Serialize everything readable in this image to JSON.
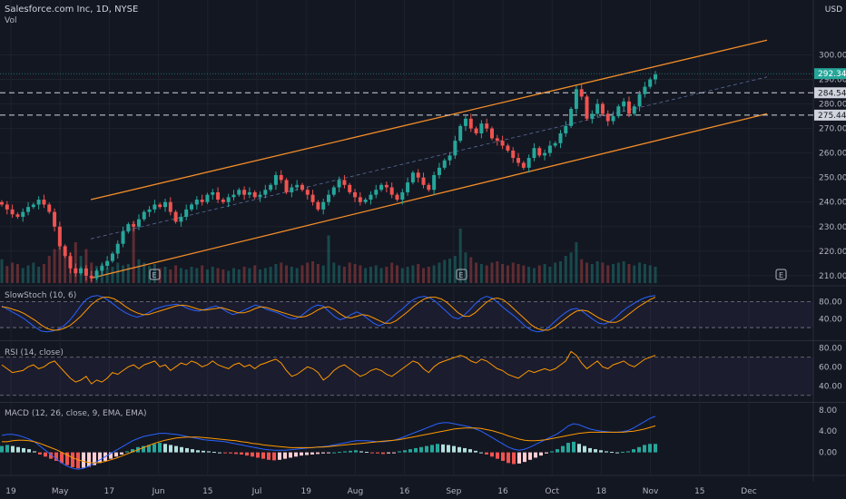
{
  "header": {
    "title": "Salesforce.com Inc, 1D, NYSE",
    "volume_label": "Vol",
    "currency": "USD",
    "earnings_marker": "E"
  },
  "price_labels": {
    "last": "292.34",
    "level_upper": "284.54",
    "level_lower": "275.44"
  },
  "panes": {
    "stoch": "SlowStoch (10, 6)",
    "rsi": "RSI (14, close)",
    "macd": "MACD (12, 26, close, 9, EMA, EMA)"
  },
  "colors": {
    "background": "#131722",
    "up": "#26a69a",
    "down": "#ef5350",
    "channel": "#f28c28",
    "blue_line": "#2962ff",
    "orange_line": "#ff9800",
    "grid": "#1e222d",
    "axis_text": "#b2b5be"
  },
  "chart_data": [
    {
      "type": "candlestick",
      "title": "Salesforce.com Inc, 1D, NYSE",
      "x_tick_labels": [
        "19",
        "May",
        "17",
        "Jun",
        "15",
        "Jul",
        "19",
        "Aug",
        "16",
        "Sep",
        "16",
        "Oct",
        "18",
        "Nov",
        "15",
        "Dec"
      ],
      "y_ticks": [
        210,
        220,
        230,
        240,
        250,
        260,
        270,
        280,
        290,
        300
      ],
      "ylim": [
        207,
        312
      ],
      "channel_upper": {
        "start": 241,
        "end": 306
      },
      "channel_lower": {
        "start": 209,
        "end": 276
      },
      "channel_mid": {
        "start": 225,
        "end": 291
      },
      "horizontal_levels": [
        284.54,
        275.44
      ],
      "last_price": 292.34,
      "earnings_markers": 2,
      "close": [
        239,
        237,
        235,
        234,
        236,
        238,
        239,
        241,
        239,
        236,
        230,
        222,
        218,
        213,
        211,
        213,
        210,
        209,
        212,
        214,
        216,
        219,
        223,
        228,
        231,
        230,
        233,
        236,
        237,
        239,
        238,
        240,
        236,
        232,
        234,
        237,
        239,
        241,
        240,
        243,
        244,
        241,
        240,
        242,
        243,
        245,
        243,
        244,
        242,
        243,
        245,
        247,
        251,
        249,
        244,
        246,
        247,
        245,
        243,
        240,
        237,
        240,
        243,
        246,
        249,
        247,
        244,
        242,
        240,
        241,
        243,
        245,
        247,
        246,
        243,
        241,
        244,
        248,
        252,
        250,
        247,
        245,
        251,
        254,
        257,
        259,
        265,
        271,
        274,
        270,
        268,
        272,
        270,
        266,
        265,
        263,
        261,
        258,
        256,
        254,
        258,
        262,
        259,
        260,
        263,
        264,
        268,
        271,
        278,
        286,
        283,
        274,
        276,
        280,
        276,
        273,
        275,
        279,
        281,
        276,
        279,
        284,
        287,
        290,
        292
      ],
      "volume": [
        0.35,
        0.25,
        0.3,
        0.28,
        0.22,
        0.26,
        0.3,
        0.24,
        0.28,
        0.4,
        0.5,
        0.65,
        0.55,
        0.45,
        0.6,
        0.4,
        0.5,
        0.3,
        0.25,
        0.28,
        0.22,
        0.24,
        0.3,
        0.26,
        0.28,
        0.9,
        0.35,
        0.3,
        0.25,
        0.28,
        0.22,
        0.24,
        0.2,
        0.26,
        0.22,
        0.2,
        0.24,
        0.22,
        0.26,
        0.2,
        0.24,
        0.22,
        0.2,
        0.18,
        0.22,
        0.2,
        0.24,
        0.22,
        0.26,
        0.2,
        0.22,
        0.24,
        0.28,
        0.3,
        0.26,
        0.24,
        0.22,
        0.26,
        0.3,
        0.32,
        0.28,
        0.26,
        0.7,
        0.3,
        0.26,
        0.24,
        0.3,
        0.28,
        0.26,
        0.22,
        0.24,
        0.26,
        0.22,
        0.24,
        0.3,
        0.26,
        0.22,
        0.24,
        0.26,
        0.28,
        0.22,
        0.24,
        0.26,
        0.3,
        0.34,
        0.36,
        0.4,
        0.8,
        0.45,
        0.38,
        0.3,
        0.28,
        0.26,
        0.3,
        0.32,
        0.28,
        0.26,
        0.3,
        0.28,
        0.26,
        0.24,
        0.22,
        0.26,
        0.28,
        0.24,
        0.3,
        0.32,
        0.4,
        0.45,
        0.6,
        0.35,
        0.3,
        0.28,
        0.32,
        0.3,
        0.26,
        0.28,
        0.3,
        0.32,
        0.28,
        0.26,
        0.3,
        0.28,
        0.26,
        0.24
      ],
      "ylabel": "USD"
    },
    {
      "type": "line",
      "title": "SlowStoch (10, 6)",
      "y_ticks": [
        40,
        80
      ],
      "ylim": [
        -5,
        110
      ],
      "bands": [
        20,
        80
      ],
      "series": [
        {
          "color": "#2962ff",
          "values": [
            70,
            62,
            55,
            48,
            40,
            30,
            20,
            12,
            10,
            12,
            16,
            24,
            36,
            52,
            70,
            85,
            92,
            94,
            90,
            82,
            72,
            62,
            54,
            48,
            44,
            48,
            54,
            62,
            66,
            70,
            72,
            74,
            70,
            64,
            60,
            58,
            62,
            66,
            70,
            64,
            56,
            50,
            54,
            60,
            66,
            72,
            68,
            62,
            58,
            54,
            48,
            42,
            40,
            46,
            56,
            66,
            72,
            70,
            58,
            46,
            38,
            42,
            50,
            56,
            50,
            40,
            30,
            24,
            30,
            40,
            52,
            62,
            74,
            84,
            90,
            92,
            88,
            80,
            68,
            56,
            44,
            40,
            48,
            60,
            74,
            86,
            92,
            88,
            78,
            66,
            56,
            46,
            34,
            22,
            14,
            10,
            12,
            20,
            32,
            44,
            54,
            62,
            64,
            58,
            48,
            38,
            30,
            28,
            34,
            44,
            56,
            66,
            74,
            82,
            88,
            92,
            94
          ]
        },
        {
          "color": "#ff9800",
          "values": [
            68,
            66,
            62,
            58,
            52,
            44,
            36,
            26,
            18,
            14,
            14,
            18,
            24,
            34,
            46,
            60,
            74,
            84,
            90,
            90,
            86,
            78,
            68,
            60,
            54,
            50,
            50,
            54,
            58,
            62,
            66,
            70,
            72,
            70,
            66,
            62,
            60,
            62,
            64,
            66,
            62,
            58,
            54,
            54,
            58,
            64,
            68,
            66,
            62,
            58,
            54,
            50,
            46,
            44,
            46,
            52,
            60,
            66,
            68,
            62,
            52,
            44,
            42,
            46,
            50,
            48,
            42,
            36,
            30,
            30,
            36,
            46,
            56,
            68,
            78,
            86,
            90,
            90,
            86,
            78,
            66,
            54,
            46,
            46,
            54,
            66,
            78,
            86,
            88,
            84,
            74,
            62,
            50,
            38,
            26,
            18,
            14,
            14,
            20,
            30,
            40,
            50,
            58,
            60,
            58,
            50,
            42,
            36,
            32,
            32,
            38,
            48,
            58,
            68,
            76,
            84,
            90
          ]
        }
      ]
    },
    {
      "type": "line",
      "title": "RSI (14, close)",
      "y_ticks": [
        40,
        60,
        80
      ],
      "ylim": [
        25,
        85
      ],
      "bands": [
        30,
        70
      ],
      "series": [
        {
          "color": "#ff9800",
          "values": [
            62,
            58,
            54,
            55,
            56,
            60,
            62,
            58,
            60,
            64,
            66,
            60,
            54,
            48,
            44,
            46,
            50,
            42,
            46,
            44,
            48,
            54,
            52,
            56,
            60,
            62,
            58,
            62,
            64,
            66,
            60,
            62,
            56,
            60,
            64,
            62,
            66,
            64,
            60,
            62,
            66,
            62,
            60,
            58,
            62,
            64,
            60,
            62,
            58,
            62,
            64,
            66,
            68,
            64,
            56,
            50,
            52,
            56,
            60,
            58,
            54,
            46,
            50,
            56,
            60,
            62,
            58,
            54,
            50,
            52,
            56,
            58,
            56,
            52,
            50,
            54,
            58,
            62,
            66,
            64,
            58,
            54,
            60,
            64,
            66,
            68,
            70,
            72,
            70,
            66,
            64,
            68,
            66,
            62,
            58,
            56,
            52,
            50,
            48,
            52,
            56,
            54,
            56,
            58,
            56,
            58,
            62,
            66,
            76,
            72,
            64,
            58,
            62,
            66,
            60,
            58,
            62,
            64,
            66,
            62,
            60,
            64,
            68,
            70,
            72
          ]
        }
      ]
    },
    {
      "type": "bar",
      "title": "MACD (12, 26, close, 9, EMA, EMA)",
      "y_ticks": [
        0.0,
        4.0,
        8.0
      ],
      "ylim": [
        -4,
        9
      ],
      "histogram": [
        1.2,
        1.4,
        1.2,
        1.0,
        0.8,
        0.6,
        0.2,
        -0.4,
        -0.8,
        -1.2,
        -1.6,
        -2.0,
        -2.4,
        -2.8,
        -3.0,
        -2.9,
        -2.7,
        -2.4,
        -2.0,
        -1.6,
        -1.2,
        -0.8,
        -0.4,
        0.2,
        0.6,
        1.0,
        1.2,
        1.4,
        1.6,
        1.8,
        1.6,
        1.4,
        1.2,
        1.0,
        0.8,
        0.6,
        0.4,
        0.3,
        0.2,
        0.1,
        0.0,
        -0.1,
        -0.2,
        -0.3,
        -0.4,
        -0.6,
        -0.8,
        -1.0,
        -1.2,
        -1.4,
        -1.5,
        -1.4,
        -1.2,
        -1.0,
        -0.8,
        -0.6,
        -0.5,
        -0.4,
        -0.3,
        -0.2,
        -0.1,
        0.0,
        0.1,
        0.2,
        0.3,
        0.4,
        0.2,
        0.1,
        -0.1,
        -0.2,
        -0.3,
        -0.2,
        -0.1,
        0.2,
        0.4,
        0.6,
        0.8,
        1.0,
        1.2,
        1.4,
        1.6,
        1.5,
        1.4,
        1.2,
        1.0,
        0.8,
        0.6,
        0.3,
        0.0,
        -0.4,
        -0.8,
        -1.2,
        -1.6,
        -2.0,
        -2.2,
        -2.1,
        -1.8,
        -1.4,
        -1.0,
        -0.6,
        -0.2,
        0.2,
        0.6,
        1.2,
        1.8,
        2.0,
        1.6,
        1.2,
        0.8,
        0.6,
        0.4,
        0.2,
        0.1,
        0.0,
        0.1,
        0.2,
        0.6,
        1.0,
        1.4,
        1.6,
        1.6
      ],
      "series": [
        {
          "color": "#2962ff",
          "values": [
            3.2,
            3.4,
            3.4,
            3.2,
            2.9,
            2.5,
            2.0,
            1.2,
            0.4,
            -0.4,
            -1.2,
            -2.0,
            -2.6,
            -3.0,
            -3.2,
            -3.0,
            -2.6,
            -2.0,
            -1.4,
            -0.8,
            -0.2,
            0.4,
            1.0,
            1.6,
            2.2,
            2.6,
            3.0,
            3.2,
            3.4,
            3.6,
            3.6,
            3.5,
            3.4,
            3.2,
            3.0,
            2.8,
            2.6,
            2.4,
            2.3,
            2.2,
            2.1,
            2.0,
            1.8,
            1.6,
            1.4,
            1.2,
            1.0,
            0.8,
            0.6,
            0.5,
            0.4,
            0.4,
            0.4,
            0.5,
            0.6,
            0.7,
            0.8,
            0.9,
            1.0,
            1.1,
            1.2,
            1.4,
            1.6,
            1.8,
            2.0,
            2.2,
            2.2,
            2.2,
            2.1,
            2.0,
            2.0,
            2.1,
            2.3,
            2.6,
            3.0,
            3.4,
            3.8,
            4.2,
            4.6,
            5.0,
            5.4,
            5.6,
            5.6,
            5.4,
            5.2,
            5.0,
            4.8,
            4.4,
            4.0,
            3.4,
            2.8,
            2.2,
            1.6,
            1.0,
            0.6,
            0.4,
            0.6,
            1.0,
            1.5,
            2.0,
            2.5,
            3.0,
            3.5,
            4.2,
            5.0,
            5.4,
            5.2,
            4.8,
            4.4,
            4.2,
            4.0,
            3.9,
            3.8,
            3.8,
            3.9,
            4.1,
            4.6,
            5.2,
            5.8,
            6.4,
            6.8
          ]
        },
        {
          "color": "#ff9800",
          "values": [
            2.0,
            2.0,
            2.2,
            2.3,
            2.3,
            2.2,
            2.0,
            1.7,
            1.3,
            0.9,
            0.5,
            0.0,
            -0.5,
            -1.0,
            -1.4,
            -1.7,
            -1.9,
            -2.0,
            -1.9,
            -1.7,
            -1.4,
            -1.1,
            -0.7,
            -0.3,
            0.1,
            0.5,
            0.9,
            1.3,
            1.7,
            2.0,
            2.3,
            2.5,
            2.7,
            2.8,
            2.9,
            2.9,
            2.9,
            2.8,
            2.7,
            2.6,
            2.5,
            2.4,
            2.3,
            2.2,
            2.0,
            1.9,
            1.7,
            1.6,
            1.4,
            1.3,
            1.2,
            1.1,
            1.0,
            0.9,
            0.9,
            0.9,
            0.9,
            0.9,
            1.0,
            1.0,
            1.1,
            1.2,
            1.3,
            1.4,
            1.5,
            1.6,
            1.7,
            1.8,
            1.9,
            2.0,
            2.1,
            2.2,
            2.3,
            2.4,
            2.6,
            2.8,
            3.0,
            3.2,
            3.4,
            3.6,
            3.8,
            4.0,
            4.2,
            4.4,
            4.5,
            4.6,
            4.6,
            4.6,
            4.5,
            4.3,
            4.1,
            3.8,
            3.5,
            3.1,
            2.8,
            2.5,
            2.3,
            2.2,
            2.2,
            2.3,
            2.4,
            2.6,
            2.8,
            3.0,
            3.2,
            3.4,
            3.6,
            3.7,
            3.8,
            3.8,
            3.8,
            3.8,
            3.8,
            3.8,
            3.8,
            3.9,
            4.0,
            4.2,
            4.4,
            4.7,
            5.0
          ]
        }
      ]
    }
  ]
}
